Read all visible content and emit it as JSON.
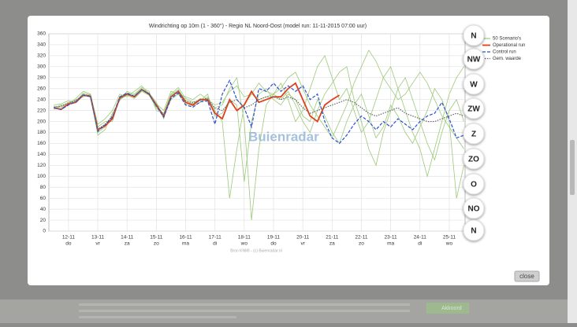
{
  "chart_data": {
    "type": "line",
    "title": "Windrichting op 10m (1 - 360°) - Regio NL Noord-Oost (model run: 11-11-2015 07:00 uur)",
    "source": "Bron KNMI - (c) Buienradar.nl",
    "watermark": "Buienradar",
    "x": [
      11.5,
      11.75,
      12,
      12.25,
      12.5,
      12.75,
      13,
      13.25,
      13.5,
      13.75,
      14,
      14.25,
      14.5,
      14.75,
      15,
      15.25,
      15.5,
      15.75,
      16,
      16.25,
      16.5,
      16.75,
      17,
      17.25,
      17.5,
      17.75,
      18,
      18.25,
      18.5,
      18.75,
      19,
      19.25,
      19.5,
      19.75,
      20,
      20.25,
      20.5,
      20.75,
      21,
      21.25,
      21.5,
      21.75,
      22,
      22.25,
      22.5,
      22.75,
      23,
      23.25,
      23.5,
      23.75,
      24,
      24.25,
      24.5,
      24.75,
      25,
      25.25,
      25.5
    ],
    "xlim": [
      11.33,
      25.54
    ],
    "xticks": [
      {
        "value": 12,
        "label": "12-11"
      },
      {
        "value": 13,
        "label": "13-11"
      },
      {
        "value": 14,
        "label": "14-11"
      },
      {
        "value": 15,
        "label": "15-11"
      },
      {
        "value": 16,
        "label": "16-11"
      },
      {
        "value": 17,
        "label": "17-11"
      },
      {
        "value": 18,
        "label": "18-11"
      },
      {
        "value": 19,
        "label": "19-11"
      },
      {
        "value": 20,
        "label": "20-11"
      },
      {
        "value": 21,
        "label": "21-11"
      },
      {
        "value": 22,
        "label": "22-11"
      },
      {
        "value": 23,
        "label": "23-11"
      },
      {
        "value": 24,
        "label": "24-11"
      },
      {
        "value": 25,
        "label": "25-11"
      }
    ],
    "xtick_days": [
      "do",
      "vr",
      "za",
      "zo",
      "ma",
      "di",
      "wo",
      "do",
      "vr",
      "za",
      "zo",
      "ma",
      "di",
      "wo"
    ],
    "ylim": [
      0,
      360
    ],
    "yticks": [
      0,
      20,
      40,
      60,
      80,
      100,
      120,
      140,
      160,
      180,
      200,
      220,
      240,
      260,
      280,
      300,
      320,
      340,
      360
    ],
    "grid": true,
    "direction_labels": [
      "N",
      "NW",
      "W",
      "ZW",
      "Z",
      "ZO",
      "O",
      "NO",
      "N"
    ],
    "series": [
      {
        "name": "50 Scenario's",
        "color": "#9cc97a",
        "style": "solid",
        "members": [
          [
            228,
            225,
            235,
            238,
            250,
            245,
            180,
            190,
            210,
            240,
            248,
            242,
            255,
            248,
            225,
            212,
            240,
            250,
            232,
            228,
            235,
            245,
            220,
            200,
            60,
            150,
            230,
            250,
            240,
            245,
            250,
            240,
            255,
            230,
            200,
            180,
            220,
            250,
            270,
            290,
            300,
            240,
            200,
            150,
            120,
            180,
            220,
            260,
            280,
            240,
            200,
            160,
            130,
            180,
            220,
            240,
            200
          ],
          [
            222,
            228,
            230,
            240,
            245,
            250,
            190,
            200,
            200,
            245,
            252,
            248,
            260,
            252,
            235,
            205,
            248,
            258,
            238,
            232,
            242,
            235,
            225,
            230,
            260,
            280,
            200,
            20,
            150,
            230,
            250,
            270,
            240,
            200,
            220,
            260,
            300,
            320,
            280,
            240,
            260,
            220,
            180,
            200,
            240,
            280,
            300,
            260,
            220,
            180,
            150,
            100,
            150,
            200,
            250,
            280,
            300
          ],
          [
            230,
            232,
            238,
            236,
            252,
            248,
            175,
            185,
            215,
            238,
            255,
            250,
            262,
            255,
            220,
            215,
            250,
            262,
            242,
            236,
            238,
            250,
            210,
            215,
            240,
            230,
            90,
            200,
            250,
            260,
            240,
            230,
            250,
            240,
            210,
            200,
            240,
            210,
            180,
            160,
            200,
            230,
            250,
            210,
            170,
            190,
            230,
            210,
            180,
            160,
            190,
            220,
            260,
            240,
            200,
            60,
            120
          ],
          [
            225,
            230,
            232,
            242,
            255,
            250,
            195,
            205,
            220,
            250,
            245,
            255,
            265,
            250,
            232,
            220,
            255,
            250,
            245,
            240,
            250,
            240,
            230,
            235,
            255,
            265,
            245,
            250,
            270,
            255,
            250,
            260,
            280,
            290,
            260,
            230,
            210,
            190,
            170,
            200,
            230,
            270,
            300,
            330,
            310,
            280,
            260,
            240,
            250,
            270,
            290,
            270,
            240,
            210,
            190,
            170,
            150
          ]
        ]
      },
      {
        "name": "Operational run",
        "color": "#e0401c",
        "style": "solid",
        "values": [
          225,
          222,
          232,
          235,
          248,
          246,
          185,
          192,
          205,
          243,
          250,
          245,
          258,
          250,
          230,
          210,
          245,
          255,
          235,
          230,
          240,
          240,
          215,
          205,
          240,
          220,
          230,
          255,
          235,
          240,
          245,
          245,
          260,
          270,
          240,
          210,
          200,
          230,
          240,
          248,
          null,
          null,
          null,
          null,
          null,
          null,
          null,
          null,
          null,
          null,
          null,
          null,
          null,
          null,
          null,
          null,
          null
        ]
      },
      {
        "name": "Control run",
        "color": "#2b4fd6",
        "style": "dashed",
        "values": [
          225,
          222,
          230,
          236,
          248,
          245,
          182,
          194,
          208,
          245,
          252,
          246,
          258,
          250,
          228,
          208,
          242,
          252,
          230,
          226,
          236,
          238,
          195,
          250,
          275,
          240,
          225,
          190,
          260,
          255,
          270,
          255,
          265,
          255,
          265,
          240,
          250,
          200,
          170,
          160,
          175,
          195,
          210,
          200,
          185,
          200,
          190,
          205,
          195,
          185,
          200,
          210,
          215,
          235,
          205,
          170,
          175
        ]
      },
      {
        "name": "Gem. waarde",
        "color": "#666666",
        "style": "dotted",
        "values": [
          226,
          228,
          234,
          238,
          249,
          247,
          186,
          195,
          210,
          242,
          250,
          246,
          258,
          251,
          228,
          213,
          246,
          255,
          238,
          234,
          240,
          242,
          224,
          220,
          235,
          240,
          225,
          230,
          240,
          245,
          245,
          240,
          245,
          240,
          225,
          215,
          220,
          225,
          230,
          235,
          240,
          235,
          225,
          215,
          210,
          215,
          220,
          225,
          215,
          210,
          205,
          200,
          200,
          205,
          210,
          215,
          210
        ]
      }
    ]
  },
  "ui": {
    "close": "close",
    "cookie_accept": "Akkoord"
  }
}
